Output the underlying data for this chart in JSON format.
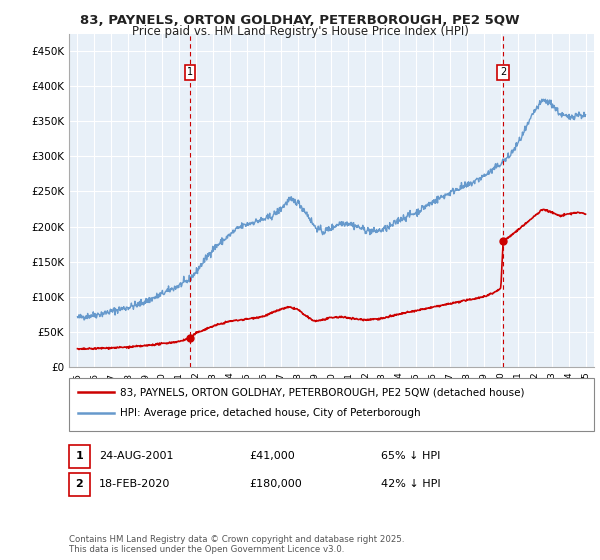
{
  "title1": "83, PAYNELS, ORTON GOLDHAY, PETERBOROUGH, PE2 5QW",
  "title2": "Price paid vs. HM Land Registry's House Price Index (HPI)",
  "ylim": [
    0,
    475000
  ],
  "yticks": [
    0,
    50000,
    100000,
    150000,
    200000,
    250000,
    300000,
    350000,
    400000,
    450000
  ],
  "ytick_labels": [
    "£0",
    "£50K",
    "£100K",
    "£150K",
    "£200K",
    "£250K",
    "£300K",
    "£350K",
    "£400K",
    "£450K"
  ],
  "xlim_start": 1994.5,
  "xlim_end": 2025.5,
  "background_color": "#e8f0f8",
  "grid_color": "#ffffff",
  "sale1_date": 2001.645,
  "sale1_price": 41000,
  "sale2_date": 2020.126,
  "sale2_price": 180000,
  "legend_label1": "83, PAYNELS, ORTON GOLDHAY, PETERBOROUGH, PE2 5QW (detached house)",
  "legend_label2": "HPI: Average price, detached house, City of Peterborough",
  "annotation1_date": "24-AUG-2001",
  "annotation1_price": "£41,000",
  "annotation1_hpi": "65% ↓ HPI",
  "annotation2_date": "18-FEB-2020",
  "annotation2_price": "£180,000",
  "annotation2_hpi": "42% ↓ HPI",
  "footer": "Contains HM Land Registry data © Crown copyright and database right 2025.\nThis data is licensed under the Open Government Licence v3.0.",
  "sale_line_color": "#cc0000",
  "hpi_line_color": "#6699cc",
  "vline_color": "#cc0000",
  "fig_width": 6.0,
  "fig_height": 5.6,
  "dpi": 100
}
